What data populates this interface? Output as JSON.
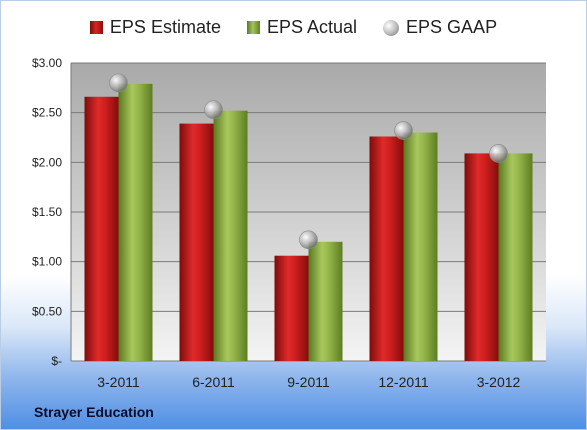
{
  "chart_data": {
    "type": "bar",
    "categories": [
      "3-2011",
      "6-2011",
      "9-2011",
      "12-2011",
      "3-2012"
    ],
    "series": [
      {
        "name": "EPS Estimate",
        "kind": "bar",
        "color": "#c81e1e",
        "values": [
          2.66,
          2.39,
          1.06,
          2.26,
          2.09
        ]
      },
      {
        "name": "EPS Actual",
        "kind": "bar",
        "color": "#8db043",
        "values": [
          2.79,
          2.52,
          1.2,
          2.3,
          2.09
        ]
      },
      {
        "name": "EPS GAAP",
        "kind": "marker",
        "color": "#a8a8a8",
        "values": [
          2.8,
          2.53,
          1.22,
          2.32,
          2.09
        ]
      }
    ],
    "yticks": [
      "$-",
      "$0.50",
      "$1.00",
      "$1.50",
      "$2.00",
      "$2.50",
      "$3.00"
    ],
    "ylim": [
      0,
      3.0
    ],
    "grid": true,
    "legend_position": "top"
  },
  "footer": {
    "company": "Strayer Education"
  }
}
